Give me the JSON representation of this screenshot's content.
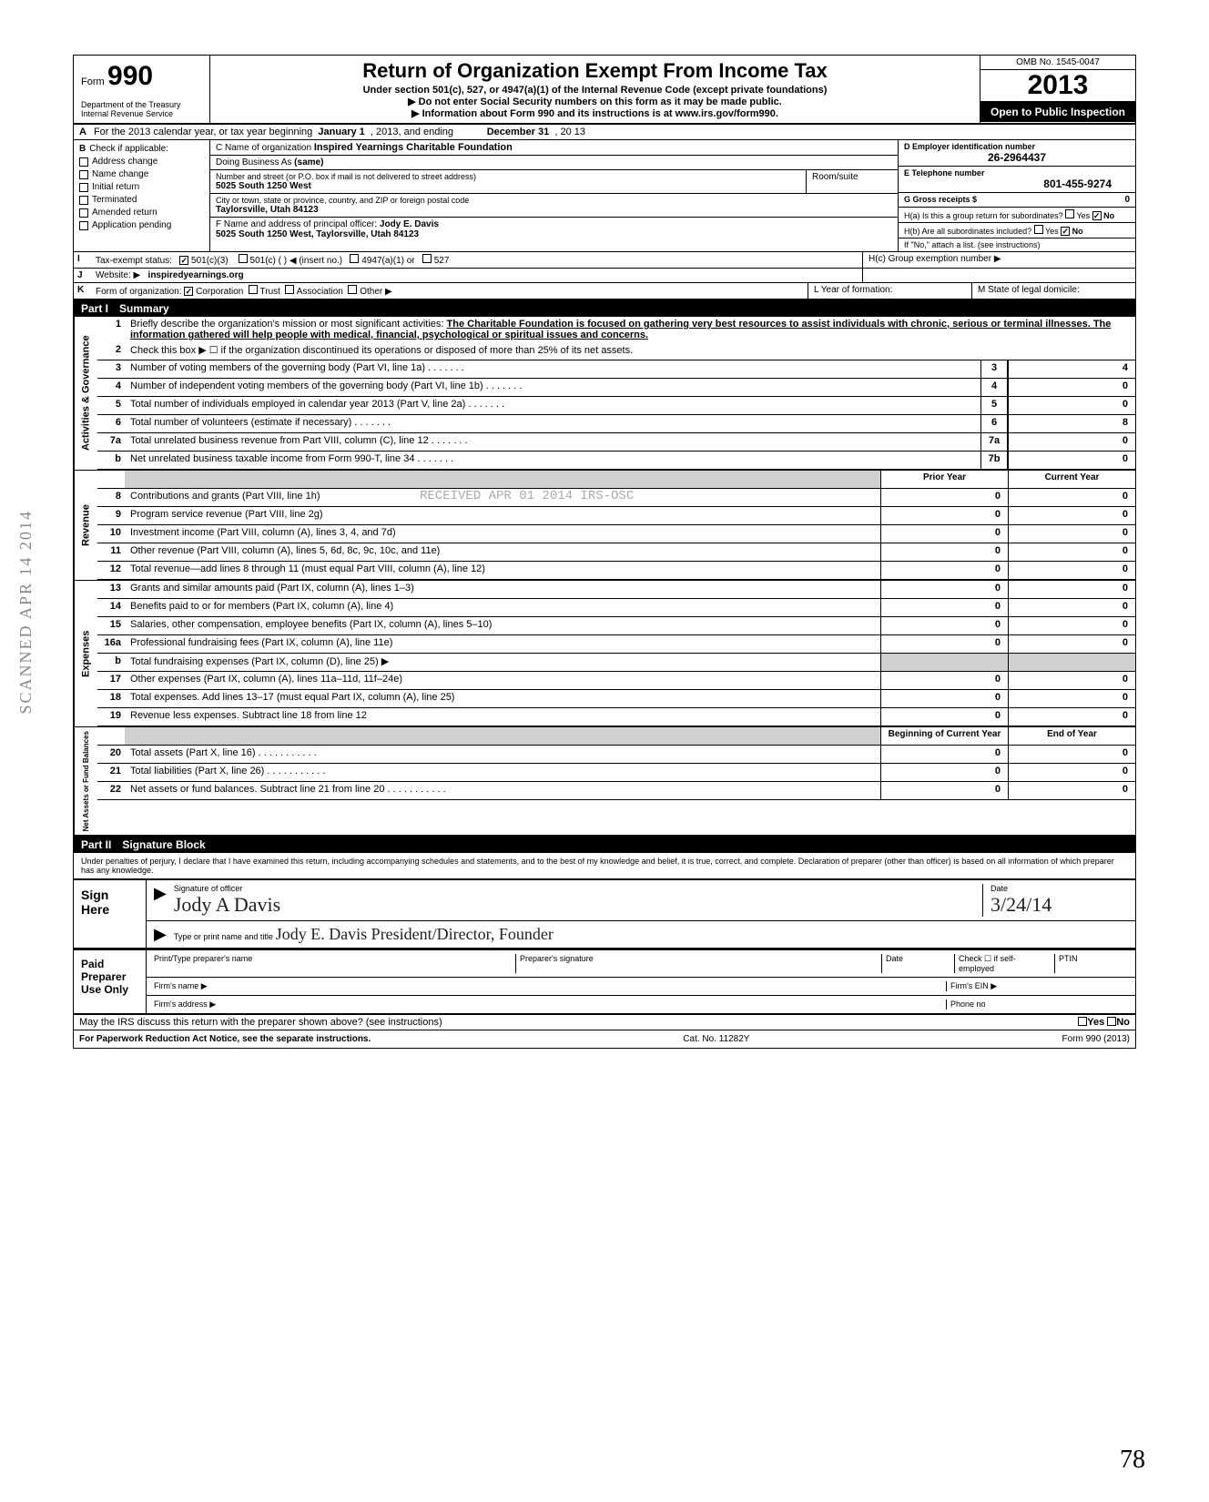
{
  "form": {
    "number": "990",
    "form_label": "Form",
    "dept": "Department of the Treasury",
    "irs": "Internal Revenue Service",
    "title": "Return of Organization Exempt From Income Tax",
    "subtitle": "Under section 501(c), 527, or 4947(a)(1) of the Internal Revenue Code (except private foundations)",
    "sub2": "▶ Do not enter Social Security numbers on this form as it may be made public.",
    "sub3": "▶ Information about Form 990 and its instructions is at www.irs.gov/form990.",
    "omb": "OMB No. 1545-0047",
    "year": "2013",
    "open_public": "Open to Public Inspection"
  },
  "lineA": {
    "label": "A",
    "text_prefix": "For the 2013 calendar year, or tax year beginning",
    "begin": "January 1",
    "mid": ", 2013, and ending",
    "end": "December 31",
    "suffix": ", 20  13"
  },
  "checkboxes": {
    "header": "Check if applicable:",
    "items": [
      {
        "label": "Address change",
        "checked": false
      },
      {
        "label": "Name change",
        "checked": false
      },
      {
        "label": "Initial return",
        "checked": false
      },
      {
        "label": "Terminated",
        "checked": false
      },
      {
        "label": "Amended return",
        "checked": false
      },
      {
        "label": "Application pending",
        "checked": false
      }
    ]
  },
  "orgC": {
    "c_label": "C Name of organization",
    "c_value": "Inspired Yearnings Charitable Foundation",
    "dba_label": "Doing Business As",
    "dba_value": "(same)",
    "street_label": "Number and street (or P.O. box if mail is not delivered to street address)",
    "room_label": "Room/suite",
    "street_value": "5025 South 1250 West",
    "city_label": "City or town, state or province, country, and ZIP or foreign postal code",
    "city_value": "Taylorsville, Utah 84123",
    "f_label": "F Name and address of principal officer:",
    "f_name": "Jody E. Davis",
    "f_addr": "5025 South 1250 West, Taylorsville, Utah 84123"
  },
  "boxD": {
    "label": "D Employer identification number",
    "value": "26-2964437"
  },
  "boxE": {
    "label": "E Telephone number",
    "value": "801-455-9274"
  },
  "boxG": {
    "label": "G Gross receipts $",
    "value": "0"
  },
  "boxH": {
    "ha": "H(a) Is this a group return for subordinates?",
    "ha_yes": false,
    "ha_no": true,
    "hb": "H(b) Are all subordinates included?",
    "hb_yes": false,
    "hb_no": true,
    "hb_note": "If \"No,\" attach a list. (see instructions)",
    "hc": "H(c) Group exemption number ▶"
  },
  "lineI": {
    "label": "I",
    "text": "Tax-exempt status:",
    "opt1": "501(c)(3)",
    "opt1_checked": true,
    "opt2": "501(c) (       ) ◀ (insert no.)",
    "opt3": "4947(a)(1) or",
    "opt4": "527"
  },
  "lineJ": {
    "label": "J",
    "text": "Website: ▶",
    "value": "inspiredyearnings.org"
  },
  "lineK": {
    "label": "K",
    "text": "Form of organization:",
    "corp": "Corporation",
    "corp_checked": true,
    "trust": "Trust",
    "assoc": "Association",
    "other": "Other ▶",
    "l_label": "L Year of formation:",
    "m_label": "M State of legal domicile:"
  },
  "part1": {
    "header_label": "Part I",
    "header_title": "Summary",
    "mission_label": "Briefly describe the organization's mission or most significant activities:",
    "mission_text": "The Charitable Foundation is focused on gathering very best resources to assist individuals with chronic, serious or terminal illnesses. The information gathered will help people with medical, financial, psychological or spiritual issues and concerns.",
    "line2": "Check this box ▶ ☐ if the organization discontinued its operations or disposed of more than 25% of its net assets."
  },
  "governance_rows": [
    {
      "n": "3",
      "text": "Number of voting members of the governing body (Part VI, line 1a)",
      "col": "3",
      "val": "4"
    },
    {
      "n": "4",
      "text": "Number of independent voting members of the governing body (Part VI, line 1b)",
      "col": "4",
      "val": "0"
    },
    {
      "n": "5",
      "text": "Total number of individuals employed in calendar year 2013 (Part V, line 2a)",
      "col": "5",
      "val": "0"
    },
    {
      "n": "6",
      "text": "Total number of volunteers (estimate if necessary)",
      "col": "6",
      "val": "8"
    },
    {
      "n": "7a",
      "text": "Total unrelated business revenue from Part VIII, column (C), line 12",
      "col": "7a",
      "val": "0"
    },
    {
      "n": "b",
      "text": "Net unrelated business taxable income from Form 990-T, line 34",
      "col": "7b",
      "val": "0"
    }
  ],
  "twocol_header": {
    "prior": "Prior Year",
    "current": "Current Year"
  },
  "revenue_rows": [
    {
      "n": "8",
      "text": "Contributions and grants (Part VIII, line 1h)",
      "prior": "0",
      "current": "0"
    },
    {
      "n": "9",
      "text": "Program service revenue (Part VIII, line 2g)",
      "prior": "0",
      "current": "0"
    },
    {
      "n": "10",
      "text": "Investment income (Part VIII, column (A), lines 3, 4, and 7d)",
      "prior": "0",
      "current": "0"
    },
    {
      "n": "11",
      "text": "Other revenue (Part VIII, column (A), lines 5, 6d, 8c, 9c, 10c, and 11e)",
      "prior": "0",
      "current": "0"
    },
    {
      "n": "12",
      "text": "Total revenue—add lines 8 through 11 (must equal Part VIII, column (A), line 12)",
      "prior": "0",
      "current": "0"
    }
  ],
  "expense_rows": [
    {
      "n": "13",
      "text": "Grants and similar amounts paid (Part IX, column (A), lines 1–3)",
      "prior": "0",
      "current": "0"
    },
    {
      "n": "14",
      "text": "Benefits paid to or for members (Part IX, column (A), line 4)",
      "prior": "0",
      "current": "0"
    },
    {
      "n": "15",
      "text": "Salaries, other compensation, employee benefits (Part IX, column (A), lines 5–10)",
      "prior": "0",
      "current": "0"
    },
    {
      "n": "16a",
      "text": "Professional fundraising fees (Part IX, column (A), line 11e)",
      "prior": "0",
      "current": "0"
    },
    {
      "n": "b",
      "text": "Total fundraising expenses (Part IX, column (D), line 25) ▶",
      "prior": "",
      "current": "",
      "gray": true
    },
    {
      "n": "17",
      "text": "Other expenses (Part IX, column (A), lines 11a–11d, 11f–24e)",
      "prior": "0",
      "current": "0"
    },
    {
      "n": "18",
      "text": "Total expenses. Add lines 13–17 (must equal Part IX, column (A), line 25)",
      "prior": "0",
      "current": "0"
    },
    {
      "n": "19",
      "text": "Revenue less expenses. Subtract line 18 from line 12",
      "prior": "0",
      "current": "0"
    }
  ],
  "netassets_header": {
    "begin": "Beginning of Current Year",
    "end": "End of Year"
  },
  "netassets_rows": [
    {
      "n": "20",
      "text": "Total assets (Part X, line 16)",
      "prior": "0",
      "current": "0"
    },
    {
      "n": "21",
      "text": "Total liabilities (Part X, line 26)",
      "prior": "0",
      "current": "0"
    },
    {
      "n": "22",
      "text": "Net assets or fund balances. Subtract line 21 from line 20",
      "prior": "0",
      "current": "0"
    }
  ],
  "part2": {
    "header_label": "Part II",
    "header_title": "Signature Block",
    "perjury": "Under penalties of perjury, I declare that I have examined this return, including accompanying schedules and statements, and to the best of my knowledge and belief, it is true, correct, and complete. Declaration of preparer (other than officer) is based on all information of which preparer has any knowledge."
  },
  "sign": {
    "label": "Sign Here",
    "sig_label": "Signature of officer",
    "date_label": "Date",
    "date_value": "3/24/14",
    "name_label": "Type or print name and title",
    "name_value": "Jody E. Davis   President/Director, Founder"
  },
  "paid_preparer": {
    "label": "Paid Preparer Use Only",
    "col1": "Print/Type preparer's name",
    "col2": "Preparer's signature",
    "col3": "Date",
    "col4_check": "Check ☐ if self-employed",
    "col5": "PTIN",
    "firm_name": "Firm's name ▶",
    "firm_ein": "Firm's EIN ▶",
    "firm_addr": "Firm's address ▶",
    "phone": "Phone no"
  },
  "discuss": {
    "text": "May the IRS discuss this return with the preparer shown above? (see instructions)",
    "yes": "Yes",
    "no": "No"
  },
  "footer": {
    "left": "For Paperwork Reduction Act Notice, see the separate instructions.",
    "mid": "Cat. No. 11282Y",
    "right": "Form 990 (2013)"
  },
  "side_labels": {
    "gov": "Activities & Governance",
    "rev": "Revenue",
    "exp": "Expenses",
    "net": "Net Assets or Fund Balances"
  },
  "stamps": {
    "scanned": "SCANNED APR 14 2014",
    "received": "RECEIVED APR 01 2014 IRS-OSC",
    "page": "78"
  },
  "colors": {
    "black": "#000000",
    "white": "#ffffff",
    "gray": "#d0d0d0",
    "stamp": "#888888"
  }
}
